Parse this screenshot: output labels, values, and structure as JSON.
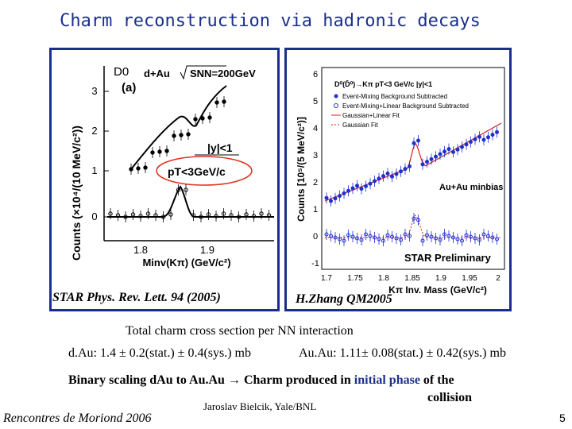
{
  "title": "Charm reconstruction via hadronic decays",
  "left_figure": {
    "particle_label": "D0",
    "dAu_label": "d+Au",
    "energy_label": "SNN=200GeV",
    "panel_label": "(a)",
    "rapidity_cut": "|y|<1",
    "pt_cut": "pT<3GeV/c",
    "ylabel": "Counts (×10⁴/(10 MeV/c²))",
    "xlabel": "Minv(Kπ) (GeV/c²)",
    "yticks": [
      "0",
      "1",
      "2",
      "3"
    ],
    "xticks": [
      "1.8",
      "1.9"
    ],
    "caption": "STAR Phys. Rev. Lett. 94 (2005)"
  },
  "right_figure": {
    "legend_title": "D⁰(D̄⁰)→Kπ  pT<3 GeV/c  |y|<1",
    "legend_items": [
      "Event-Mixing Background Subtracted",
      "Event-Mixing+Linear Background Subtracted",
      "Gaussian+Linear Fit",
      "Gaussian Fit"
    ],
    "dataset_label": "Au+Au minbias",
    "prelim_label": "STAR Preliminary",
    "ylabel": "Counts [10⁵/(5 MeV/c²)]",
    "xlabel": "Kπ Inv. Mass (GeV/c²)",
    "yticks": [
      "-1",
      "0",
      "1",
      "2",
      "3",
      "4",
      "5",
      "6"
    ],
    "xticks": [
      "1.7",
      "1.75",
      "1.8",
      "1.85",
      "1.9",
      "1.95",
      "2"
    ],
    "caption": "H.Zhang QM2005"
  },
  "cross_section_heading": "Total charm cross section per NN interaction",
  "dAu_result": "d.Au: 1.4 ± 0.2(stat.) ± 0.4(sys.) mb",
  "AuAu_result": "Au.Au: 1.11± 0.08(stat.) ± 0.42(sys.) mb",
  "scaling_prefix": "Binary scaling dAu to Au.Au",
  "arrow": "→",
  "scaling_middle": "Charm produced in",
  "scaling_highlight": "initial phase",
  "scaling_suffix": "of the",
  "scaling_line2": "collision",
  "author": "Jaroslav Bielcik, Yale/BNL",
  "conference": "Rencontres de Moriond 2006",
  "page_number": "5",
  "colors": {
    "title": "#1a2f8c",
    "frame": "#1a2f8c",
    "blue_points": "#2030d0",
    "red_fit": "#d02020",
    "highlight": "#1a2f8c",
    "oval": "#e03020"
  }
}
